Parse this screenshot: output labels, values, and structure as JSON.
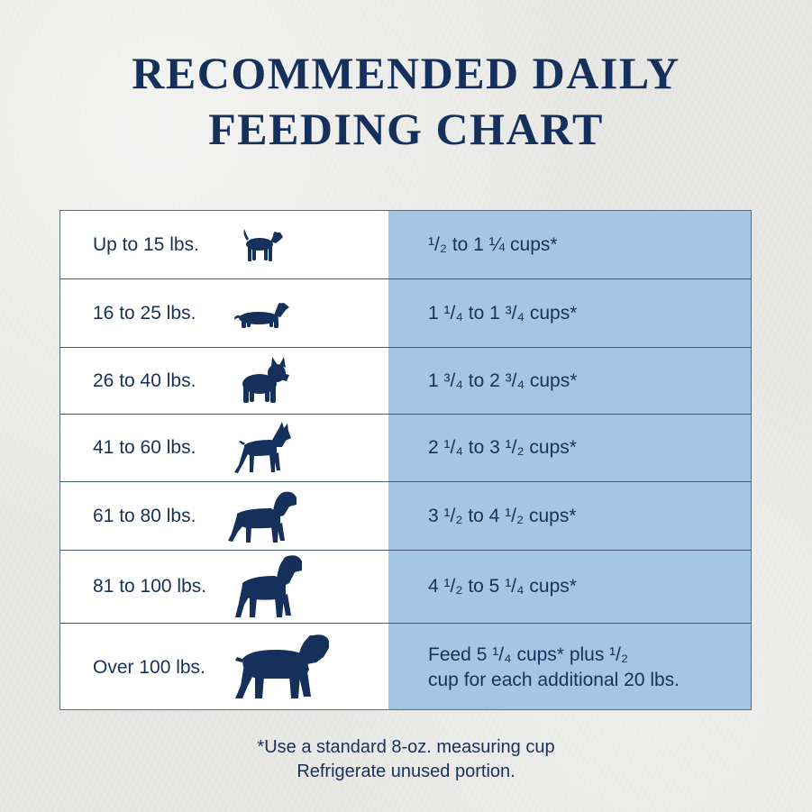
{
  "title": {
    "line1": "RECOMMENDED DAILY",
    "line2": "FEEDING CHART"
  },
  "colors": {
    "navy": "#16305c",
    "amount_column": "#a4c6e2",
    "weight_column": "#ffffff"
  },
  "rows": [
    {
      "weight": "Up to 15 lbs.",
      "icon": "beagle-icon",
      "amount": [
        "¹/₂ to 1 ¼ cups*"
      ]
    },
    {
      "weight": "16 to 25 lbs.",
      "icon": "dachshund-icon",
      "amount": [
        "1 ¹/₄ to 1 ³/₄ cups*"
      ]
    },
    {
      "weight": "26 to 40 lbs.",
      "icon": "french-bulldog-icon",
      "amount": [
        "1 ³/₄ to 2 ³/₄ cups*"
      ]
    },
    {
      "weight": "41 to 60 lbs.",
      "icon": "boxer-icon",
      "amount": [
        "2 ¹/₄ to 3 ¹/₂ cups*"
      ]
    },
    {
      "weight": "61 to 80 lbs.",
      "icon": "rottweiler-icon",
      "amount": [
        "3 ¹/₂ to 4 ¹/₂ cups*"
      ]
    },
    {
      "weight": "81 to 100 lbs.",
      "icon": "large-rottweiler-icon",
      "amount": [
        "4 ¹/₂ to 5 ¹/₄ cups*"
      ]
    },
    {
      "weight": "Over 100 lbs.",
      "icon": "mastiff-icon",
      "amount": [
        "Feed 5 ¹/₄ cups* plus ¹/₂",
        "cup for each additional 20 lbs."
      ]
    }
  ],
  "footnote": {
    "line1": "*Use a standard 8-oz. measuring cup",
    "line2": "Refrigerate unused portion."
  }
}
